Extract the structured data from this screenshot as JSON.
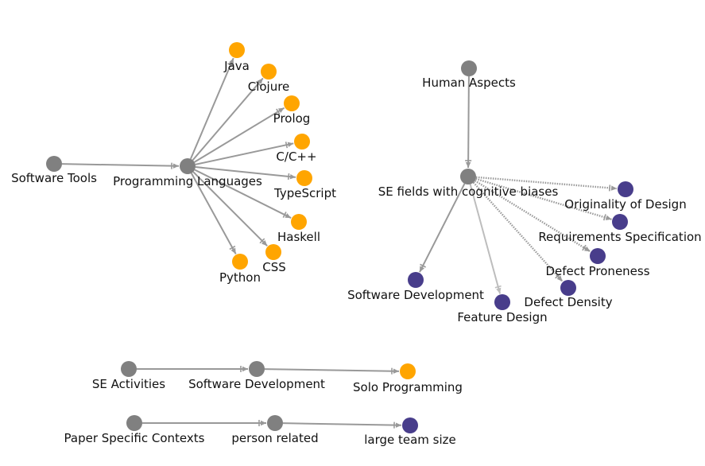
{
  "colors": {
    "gray": "#808080",
    "orange": "#FFA500",
    "purple": "#483D8B",
    "edge": "#999999"
  },
  "nodes": [
    {
      "id": "software-tools",
      "label": "Software Tools",
      "group": "gray"
    },
    {
      "id": "programming-languages",
      "label": "Programming Languages",
      "group": "gray"
    },
    {
      "id": "java",
      "label": "Java",
      "group": "orange"
    },
    {
      "id": "clojure",
      "label": "Clojure",
      "group": "orange"
    },
    {
      "id": "prolog",
      "label": "Prolog",
      "group": "orange"
    },
    {
      "id": "c-cpp",
      "label": "C/C++",
      "group": "orange"
    },
    {
      "id": "typescript",
      "label": "TypeScript",
      "group": "orange"
    },
    {
      "id": "haskell",
      "label": "Haskell",
      "group": "orange"
    },
    {
      "id": "css",
      "label": "CSS",
      "group": "orange"
    },
    {
      "id": "python",
      "label": "Python",
      "group": "orange"
    },
    {
      "id": "human-aspects",
      "label": "Human Aspects",
      "group": "gray"
    },
    {
      "id": "se-fields-cognitive-biases",
      "label": "SE fields with cognitive biases",
      "group": "gray"
    },
    {
      "id": "originality-of-design",
      "label": "Originality of Design",
      "group": "purple"
    },
    {
      "id": "requirements-specification",
      "label": "Requirements Specification",
      "group": "purple"
    },
    {
      "id": "defect-proneness",
      "label": "Defect Proneness",
      "group": "purple"
    },
    {
      "id": "defect-density",
      "label": "Defect Density",
      "group": "purple"
    },
    {
      "id": "feature-design",
      "label": "Feature Design",
      "group": "purple"
    },
    {
      "id": "software-development-a",
      "label": "Software Development",
      "group": "purple"
    },
    {
      "id": "se-activities",
      "label": "SE Activities",
      "group": "gray"
    },
    {
      "id": "software-development-b",
      "label": "Software Development",
      "group": "gray"
    },
    {
      "id": "solo-programming",
      "label": "Solo Programming",
      "group": "orange"
    },
    {
      "id": "paper-specific-contexts",
      "label": "Paper Specific Contexts",
      "group": "gray"
    },
    {
      "id": "person-related",
      "label": "person related",
      "group": "gray"
    },
    {
      "id": "large-team-size",
      "label": "large team size",
      "group": "purple"
    }
  ],
  "edges": [
    {
      "from": "software-tools",
      "to": "programming-languages",
      "style": "solid"
    },
    {
      "from": "programming-languages",
      "to": "java",
      "style": "solid"
    },
    {
      "from": "programming-languages",
      "to": "clojure",
      "style": "solid"
    },
    {
      "from": "programming-languages",
      "to": "prolog",
      "style": "solid"
    },
    {
      "from": "programming-languages",
      "to": "c-cpp",
      "style": "solid"
    },
    {
      "from": "programming-languages",
      "to": "typescript",
      "style": "solid"
    },
    {
      "from": "programming-languages",
      "to": "haskell",
      "style": "solid"
    },
    {
      "from": "programming-languages",
      "to": "css",
      "style": "solid"
    },
    {
      "from": "programming-languages",
      "to": "python",
      "style": "solid"
    },
    {
      "from": "human-aspects",
      "to": "se-fields-cognitive-biases",
      "style": "solid"
    },
    {
      "from": "se-fields-cognitive-biases",
      "to": "originality-of-design",
      "style": "dotted"
    },
    {
      "from": "se-fields-cognitive-biases",
      "to": "requirements-specification",
      "style": "dotted"
    },
    {
      "from": "se-fields-cognitive-biases",
      "to": "defect-proneness",
      "style": "dotted"
    },
    {
      "from": "se-fields-cognitive-biases",
      "to": "defect-density",
      "style": "dotted"
    },
    {
      "from": "se-fields-cognitive-biases",
      "to": "feature-design",
      "style": "light"
    },
    {
      "from": "se-fields-cognitive-biases",
      "to": "software-development-a",
      "style": "solid"
    },
    {
      "from": "se-activities",
      "to": "software-development-b",
      "style": "solid"
    },
    {
      "from": "software-development-b",
      "to": "solo-programming",
      "style": "solid"
    },
    {
      "from": "paper-specific-contexts",
      "to": "person-related",
      "style": "solid"
    },
    {
      "from": "person-related",
      "to": "large-team-size",
      "style": "solid"
    }
  ]
}
